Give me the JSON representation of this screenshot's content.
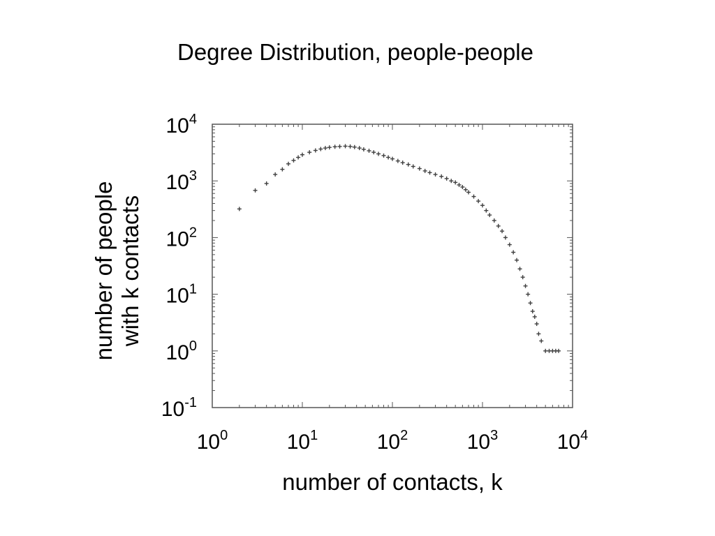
{
  "slide": {
    "title": "Degree Distribution, people-people"
  },
  "chart_data": {
    "type": "scatter",
    "xlabel": "number of contacts, k",
    "ylabel_line1": "number of people",
    "ylabel_line2": "with k contacts",
    "x_scale": "log",
    "y_scale": "log",
    "xlim": [
      1,
      10000
    ],
    "ylim": [
      0.1,
      10000
    ],
    "x_ticks": [
      {
        "base": "10",
        "exp": "0"
      },
      {
        "base": "10",
        "exp": "1"
      },
      {
        "base": "10",
        "exp": "2"
      },
      {
        "base": "10",
        "exp": "3"
      },
      {
        "base": "10",
        "exp": "4"
      }
    ],
    "y_ticks": [
      {
        "base": "10",
        "exp": "-1"
      },
      {
        "base": "10",
        "exp": "0"
      },
      {
        "base": "10",
        "exp": "1"
      },
      {
        "base": "10",
        "exp": "2"
      },
      {
        "base": "10",
        "exp": "3"
      },
      {
        "base": "10",
        "exp": "4"
      }
    ],
    "grid": false,
    "marker": "+",
    "marker_color": "#000000",
    "series": [
      {
        "points": [
          [
            2,
            320
          ],
          [
            3,
            680
          ],
          [
            4,
            900
          ],
          [
            5,
            1300
          ],
          [
            6,
            1600
          ],
          [
            7,
            2000
          ],
          [
            8,
            2300
          ],
          [
            9,
            2600
          ],
          [
            10,
            2900
          ],
          [
            12,
            3200
          ],
          [
            14,
            3450
          ],
          [
            16,
            3650
          ],
          [
            18,
            3800
          ],
          [
            20,
            3900
          ],
          [
            23,
            4000
          ],
          [
            26,
            4050
          ],
          [
            30,
            4100
          ],
          [
            34,
            4050
          ],
          [
            38,
            3950
          ],
          [
            43,
            3800
          ],
          [
            48,
            3600
          ],
          [
            55,
            3400
          ],
          [
            62,
            3200
          ],
          [
            70,
            3000
          ],
          [
            80,
            2800
          ],
          [
            90,
            2600
          ],
          [
            100,
            2450
          ],
          [
            115,
            2250
          ],
          [
            130,
            2100
          ],
          [
            150,
            1950
          ],
          [
            170,
            1800
          ],
          [
            200,
            1650
          ],
          [
            230,
            1500
          ],
          [
            260,
            1400
          ],
          [
            300,
            1300
          ],
          [
            350,
            1200
          ],
          [
            400,
            1100
          ],
          [
            450,
            1000
          ],
          [
            500,
            940
          ],
          [
            550,
            850
          ],
          [
            600,
            780
          ],
          [
            650,
            700
          ],
          [
            700,
            630
          ],
          [
            800,
            530
          ],
          [
            900,
            440
          ],
          [
            1000,
            370
          ],
          [
            1100,
            300
          ],
          [
            1200,
            250
          ],
          [
            1350,
            200
          ],
          [
            1500,
            160
          ],
          [
            1650,
            130
          ],
          [
            1800,
            100
          ],
          [
            2000,
            75
          ],
          [
            2200,
            55
          ],
          [
            2400,
            40
          ],
          [
            2600,
            28
          ],
          [
            2800,
            20
          ],
          [
            3000,
            14
          ],
          [
            3200,
            10
          ],
          [
            3400,
            7
          ],
          [
            3600,
            5
          ],
          [
            3800,
            4
          ],
          [
            4000,
            3
          ],
          [
            4200,
            2
          ],
          [
            4500,
            1.5
          ],
          [
            5000,
            1
          ],
          [
            5500,
            1
          ],
          [
            6000,
            1
          ],
          [
            6500,
            1
          ],
          [
            7000,
            1
          ]
        ]
      }
    ]
  }
}
